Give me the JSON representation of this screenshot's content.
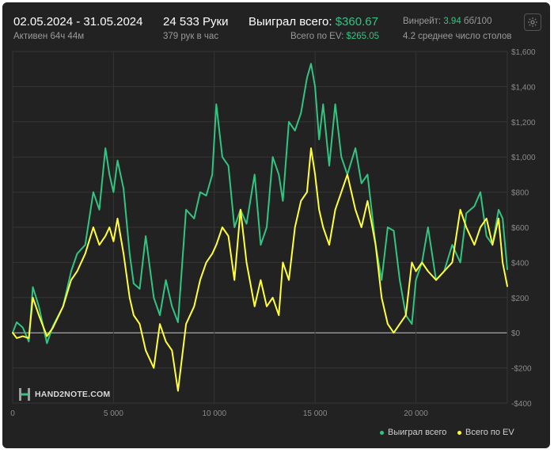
{
  "header": {
    "date_range": "02.05.2024 - 31.05.2024",
    "active_time": "Активен 64ч 44м",
    "hands": "24 533 Руки",
    "hands_per_hour": "379 рук в час",
    "won_label": "Выиграл всего:",
    "won_value": "$360.67",
    "ev_label": "Всего по EV:",
    "ev_value": "$265.05",
    "winrate_label": "Винрейт:",
    "winrate_value": "3.94",
    "winrate_unit": "бб/100",
    "tables": "4.2 среднее число столов"
  },
  "logo": {
    "text": "HAND2NOTE.COM"
  },
  "colors": {
    "green": "#33c481",
    "yellow": "#ffff3a",
    "background": "#222222",
    "grid": "#353535",
    "zero_line": "#c8c8c8"
  },
  "chart_data": {
    "type": "line",
    "xlim": [
      0,
      24533
    ],
    "ylim": [
      -400,
      1600
    ],
    "x_ticks": [
      0,
      5000,
      10000,
      15000,
      20000
    ],
    "x_tick_labels": [
      "0",
      "5 000",
      "10 000",
      "15 000",
      "20 000"
    ],
    "y_ticks": [
      1600,
      1400,
      1200,
      1000,
      800,
      600,
      400,
      200,
      0,
      -200,
      -400
    ],
    "y_tick_labels": [
      "$1,600",
      "$1,400",
      "$1,200",
      "$1,000",
      "$800",
      "$600",
      "$400",
      "$200",
      "$0",
      "-$200",
      "-$400"
    ],
    "legend_position": "bottom-right",
    "series": [
      {
        "name": "Выиграл всего",
        "color": "#33c481",
        "x": [
          0,
          200,
          500,
          800,
          1000,
          1300,
          1700,
          2000,
          2500,
          2900,
          3200,
          3600,
          4000,
          4300,
          4600,
          4800,
          5000,
          5200,
          5500,
          5800,
          6000,
          6300,
          6600,
          7000,
          7300,
          7600,
          7900,
          8200,
          8600,
          9000,
          9300,
          9600,
          9900,
          10100,
          10400,
          10700,
          11000,
          11300,
          11600,
          12000,
          12300,
          12600,
          12900,
          13200,
          13400,
          13700,
          14000,
          14300,
          14600,
          14800,
          15000,
          15200,
          15400,
          15700,
          16000,
          16300,
          16600,
          17000,
          17300,
          17600,
          18000,
          18300,
          18600,
          18900,
          19200,
          19500,
          19800,
          20000,
          20300,
          20600,
          21000,
          21400,
          21800,
          22200,
          22500,
          22900,
          23200,
          23500,
          23800,
          24100,
          24300,
          24533
        ],
        "values": [
          0,
          60,
          30,
          -50,
          260,
          150,
          -60,
          40,
          150,
          350,
          450,
          500,
          800,
          700,
          1050,
          900,
          800,
          980,
          820,
          450,
          280,
          250,
          550,
          200,
          100,
          300,
          150,
          60,
          700,
          650,
          800,
          780,
          900,
          1300,
          1000,
          950,
          600,
          700,
          620,
          900,
          500,
          600,
          1000,
          900,
          750,
          1200,
          1150,
          1250,
          1450,
          1530,
          1400,
          1100,
          1300,
          950,
          1300,
          1000,
          900,
          1050,
          850,
          900,
          500,
          300,
          600,
          580,
          300,
          100,
          50,
          300,
          400,
          600,
          300,
          350,
          500,
          400,
          680,
          720,
          800,
          550,
          500,
          700,
          650,
          360.67
        ]
      },
      {
        "name": "Всего по EV",
        "color": "#ffff3a",
        "x": [
          0,
          200,
          500,
          800,
          1000,
          1300,
          1700,
          2000,
          2500,
          2900,
          3200,
          3600,
          4000,
          4300,
          4600,
          4800,
          5000,
          5200,
          5500,
          5800,
          6000,
          6300,
          6600,
          7000,
          7300,
          7600,
          7900,
          8200,
          8600,
          9000,
          9300,
          9600,
          9900,
          10100,
          10400,
          10700,
          11000,
          11300,
          11600,
          12000,
          12300,
          12600,
          12900,
          13200,
          13400,
          13700,
          14000,
          14300,
          14600,
          14800,
          15000,
          15200,
          15400,
          15700,
          16000,
          16300,
          16600,
          17000,
          17300,
          17600,
          18000,
          18300,
          18600,
          18900,
          19200,
          19500,
          19800,
          20000,
          20300,
          20600,
          21000,
          21400,
          21800,
          22200,
          22500,
          22900,
          23200,
          23500,
          23800,
          24100,
          24300,
          24533
        ],
        "values": [
          0,
          -30,
          -20,
          -30,
          200,
          100,
          -20,
          30,
          150,
          300,
          350,
          450,
          600,
          500,
          550,
          600,
          520,
          650,
          450,
          200,
          100,
          50,
          -100,
          -200,
          50,
          -50,
          -100,
          -330,
          50,
          150,
          300,
          400,
          450,
          500,
          600,
          550,
          300,
          700,
          400,
          150,
          300,
          150,
          200,
          100,
          400,
          300,
          600,
          750,
          800,
          1050,
          900,
          700,
          600,
          500,
          700,
          800,
          900,
          700,
          600,
          750,
          500,
          200,
          50,
          0,
          50,
          100,
          400,
          350,
          400,
          350,
          300,
          350,
          400,
          700,
          600,
          500,
          600,
          650,
          500,
          650,
          400,
          265.05
        ]
      }
    ]
  }
}
